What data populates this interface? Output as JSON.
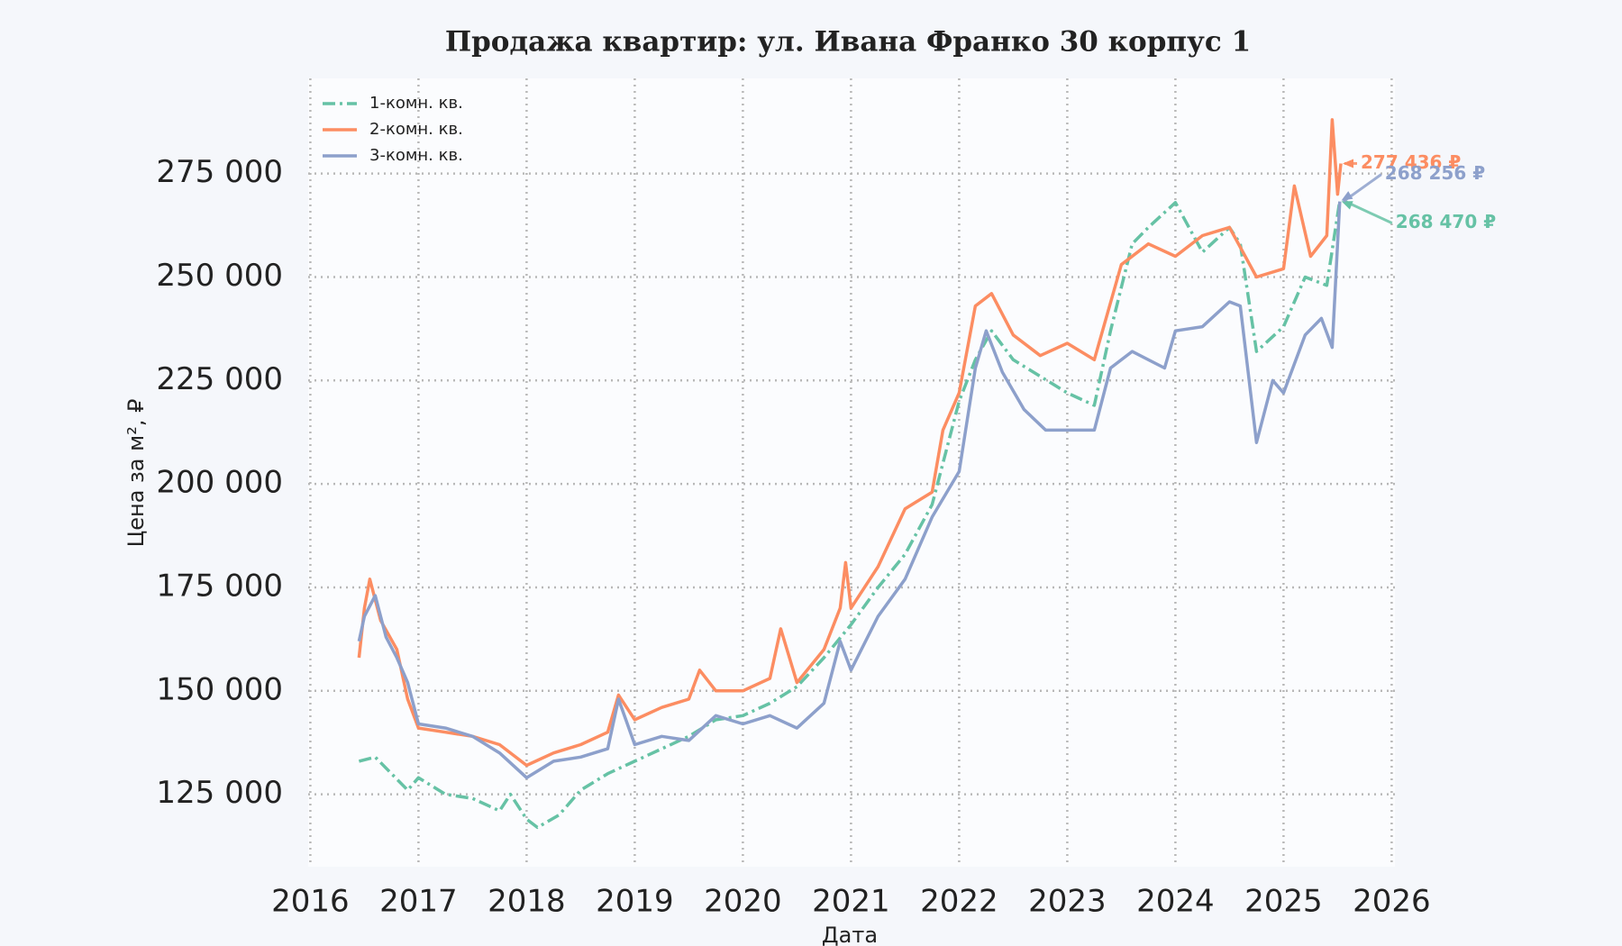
{
  "chart_data": {
    "type": "line",
    "title": "Продажа квартир: ул. Ивана Франко 30 корпус 1",
    "x_label": "Дата",
    "y_label": "Цена за м², ₽",
    "xlim": [
      2015.98,
      2026.03
    ],
    "ylim": [
      107500,
      298000
    ],
    "xticks": [
      2016,
      2017,
      2018,
      2019,
      2020,
      2021,
      2022,
      2023,
      2024,
      2025,
      2026
    ],
    "yticks": [
      {
        "value": 125000,
        "label": "125 000"
      },
      {
        "value": 150000,
        "label": "150 000"
      },
      {
        "value": 175000,
        "label": "175 000"
      },
      {
        "value": 200000,
        "label": "200 000"
      },
      {
        "value": 225000,
        "label": "225 000"
      },
      {
        "value": 250000,
        "label": "250 000"
      },
      {
        "value": 275000,
        "label": "275 000"
      }
    ],
    "grid": true,
    "legend": "upper left",
    "series": [
      {
        "name": "1-комн. кв.",
        "color": "#66c2a5",
        "dash": "dashdot",
        "x": [
          2016.45,
          2016.6,
          2016.75,
          2016.9,
          2017.0,
          2017.25,
          2017.5,
          2017.75,
          2017.85,
          2018.0,
          2018.1,
          2018.3,
          2018.5,
          2018.75,
          2019.0,
          2019.25,
          2019.5,
          2019.75,
          2020.0,
          2020.25,
          2020.5,
          2020.75,
          2021.0,
          2021.25,
          2021.5,
          2021.75,
          2022.0,
          2022.15,
          2022.3,
          2022.5,
          2022.75,
          2023.0,
          2023.25,
          2023.4,
          2023.6,
          2023.75,
          2024.0,
          2024.25,
          2024.5,
          2024.6,
          2024.75,
          2025.0,
          2025.2,
          2025.4,
          2025.52
        ],
        "values": [
          133000,
          134000,
          130000,
          126000,
          129000,
          125000,
          124000,
          121000,
          125000,
          119000,
          117000,
          120000,
          126000,
          130000,
          133000,
          136000,
          139000,
          143000,
          144000,
          147000,
          151000,
          158000,
          166000,
          175000,
          183000,
          195000,
          220000,
          230000,
          237000,
          230000,
          226000,
          222000,
          219000,
          237000,
          258000,
          262000,
          268000,
          256000,
          262000,
          258000,
          232000,
          238000,
          250000,
          248000,
          268470
        ],
        "value_labels": [
          null,
          null,
          null,
          null,
          null,
          null,
          null,
          null,
          null,
          null,
          null,
          null,
          null,
          null,
          null,
          null,
          null,
          null,
          null,
          null,
          null,
          null,
          null,
          null,
          null,
          null,
          null,
          null,
          null,
          null,
          null,
          null,
          null,
          null,
          null,
          null,
          null,
          null,
          null,
          null,
          null,
          null,
          null,
          null,
          "268 470 ₽"
        ]
      },
      {
        "name": "2-комн. кв.",
        "color": "#fc8d62",
        "dash": "solid",
        "x": [
          2016.45,
          2016.5,
          2016.55,
          2016.65,
          2016.8,
          2016.9,
          2017.0,
          2017.25,
          2017.5,
          2017.75,
          2018.0,
          2018.25,
          2018.5,
          2018.75,
          2018.85,
          2019.0,
          2019.25,
          2019.5,
          2019.6,
          2019.75,
          2020.0,
          2020.25,
          2020.35,
          2020.5,
          2020.75,
          2020.9,
          2020.95,
          2021.0,
          2021.25,
          2021.5,
          2021.75,
          2021.85,
          2022.0,
          2022.15,
          2022.3,
          2022.5,
          2022.75,
          2023.0,
          2023.25,
          2023.5,
          2023.75,
          2024.0,
          2024.25,
          2024.5,
          2024.75,
          2025.0,
          2025.1,
          2025.25,
          2025.4,
          2025.45,
          2025.5,
          2025.53
        ],
        "values": [
          158000,
          170000,
          177000,
          167000,
          160000,
          148000,
          141000,
          140000,
          139000,
          137000,
          132000,
          135000,
          137000,
          140000,
          149000,
          143000,
          146000,
          148000,
          155000,
          150000,
          150000,
          153000,
          165000,
          152000,
          160000,
          170000,
          181000,
          170000,
          180000,
          194000,
          198000,
          213000,
          222000,
          243000,
          246000,
          236000,
          231000,
          234000,
          230000,
          253000,
          258000,
          255000,
          260000,
          262000,
          250000,
          252000,
          272000,
          255000,
          260000,
          288000,
          270000,
          277436
        ],
        "value_labels": [
          null,
          null,
          null,
          null,
          null,
          null,
          null,
          null,
          null,
          null,
          null,
          null,
          null,
          null,
          null,
          null,
          null,
          null,
          null,
          null,
          null,
          null,
          null,
          null,
          null,
          null,
          null,
          null,
          null,
          null,
          null,
          null,
          null,
          null,
          null,
          null,
          null,
          null,
          null,
          null,
          null,
          null,
          null,
          null,
          null,
          null,
          null,
          null,
          null,
          null,
          null,
          "277 436 ₽"
        ]
      },
      {
        "name": "3-комн. кв.",
        "color": "#8da0cb",
        "dash": "solid",
        "x": [
          2016.45,
          2016.5,
          2016.6,
          2016.7,
          2016.8,
          2016.9,
          2017.0,
          2017.25,
          2017.5,
          2017.75,
          2018.0,
          2018.25,
          2018.5,
          2018.75,
          2018.85,
          2019.0,
          2019.25,
          2019.5,
          2019.75,
          2020.0,
          2020.25,
          2020.5,
          2020.75,
          2020.9,
          2021.0,
          2021.25,
          2021.5,
          2021.75,
          2022.0,
          2022.15,
          2022.25,
          2022.4,
          2022.6,
          2022.8,
          2023.0,
          2023.25,
          2023.4,
          2023.6,
          2023.9,
          2024.0,
          2024.25,
          2024.5,
          2024.6,
          2024.75,
          2024.9,
          2025.0,
          2025.2,
          2025.35,
          2025.45,
          2025.52
        ],
        "values": [
          162000,
          168000,
          173000,
          163000,
          158000,
          152000,
          142000,
          141000,
          139000,
          135000,
          129000,
          133000,
          134000,
          136000,
          148000,
          137000,
          139000,
          138000,
          144000,
          142000,
          144000,
          141000,
          147000,
          162000,
          155000,
          168000,
          177000,
          192000,
          203000,
          228000,
          237000,
          227000,
          218000,
          213000,
          213000,
          213000,
          228000,
          232000,
          228000,
          237000,
          238000,
          244000,
          243000,
          210000,
          225000,
          222000,
          236000,
          240000,
          233000,
          268256
        ],
        "value_labels": [
          null,
          null,
          null,
          null,
          null,
          null,
          null,
          null,
          null,
          null,
          null,
          null,
          null,
          null,
          null,
          null,
          null,
          null,
          null,
          null,
          null,
          null,
          null,
          null,
          null,
          null,
          null,
          null,
          null,
          null,
          null,
          null,
          null,
          null,
          null,
          null,
          null,
          null,
          null,
          null,
          null,
          null,
          null,
          null,
          null,
          null,
          null,
          null,
          null,
          "268 256 ₽"
        ]
      }
    ]
  }
}
